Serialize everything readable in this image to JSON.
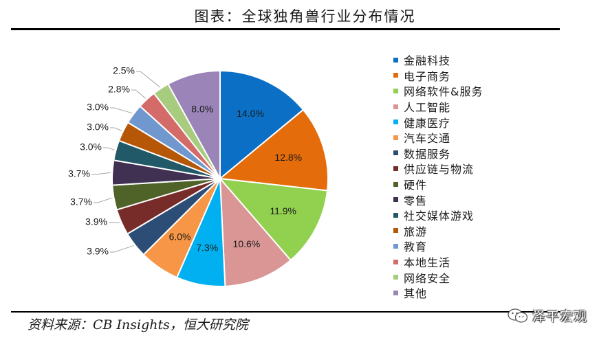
{
  "title": "图表：全球独角兽行业分布情况",
  "source": "资料来源：CB Insights，恒大研究院",
  "brand": {
    "name": "泽平宏观",
    "icon": "wechat-icon"
  },
  "chart_data": {
    "type": "pie",
    "title": "",
    "unit": "%",
    "categories": [
      "金融科技",
      "电子商务",
      "网络软件&服务",
      "人工智能",
      "健康医疗",
      "汽车交通",
      "数据服务",
      "供应链与物流",
      "硬件",
      "零售",
      "社交媒体游戏",
      "旅游",
      "教育",
      "本地生活",
      "网络安全",
      "其他"
    ],
    "values": [
      14.0,
      12.8,
      11.9,
      10.6,
      7.3,
      6.0,
      3.9,
      3.9,
      3.7,
      3.7,
      3.0,
      3.0,
      3.0,
      2.8,
      2.5,
      8.0
    ],
    "labels": [
      "14.0%",
      "12.8%",
      "11.9%",
      "10.6%",
      "7.3%",
      "6.0%",
      "3.9%",
      "3.9%",
      "3.7%",
      "3.7%",
      "3.0%",
      "3.0%",
      "3.0%",
      "2.8%",
      "2.5%",
      "8.0%"
    ],
    "colors": [
      "#0b6fc5",
      "#e46c0a",
      "#92d050",
      "#d99694",
      "#00b0f0",
      "#f79646",
      "#2c4d75",
      "#772c2a",
      "#4f6228",
      "#403152",
      "#215968",
      "#b65708",
      "#7098cf",
      "#d36b69",
      "#a8cc7e",
      "#9a84b8"
    ],
    "label_placement": [
      "inside",
      "inside",
      "inside",
      "inside",
      "inside",
      "inside",
      "outside",
      "outside",
      "outside",
      "outside",
      "outside",
      "outside",
      "outside",
      "outside",
      "outside",
      "inside"
    ],
    "start_angle_deg": 0,
    "direction": "clockwise",
    "legend": {
      "position": "right"
    }
  }
}
